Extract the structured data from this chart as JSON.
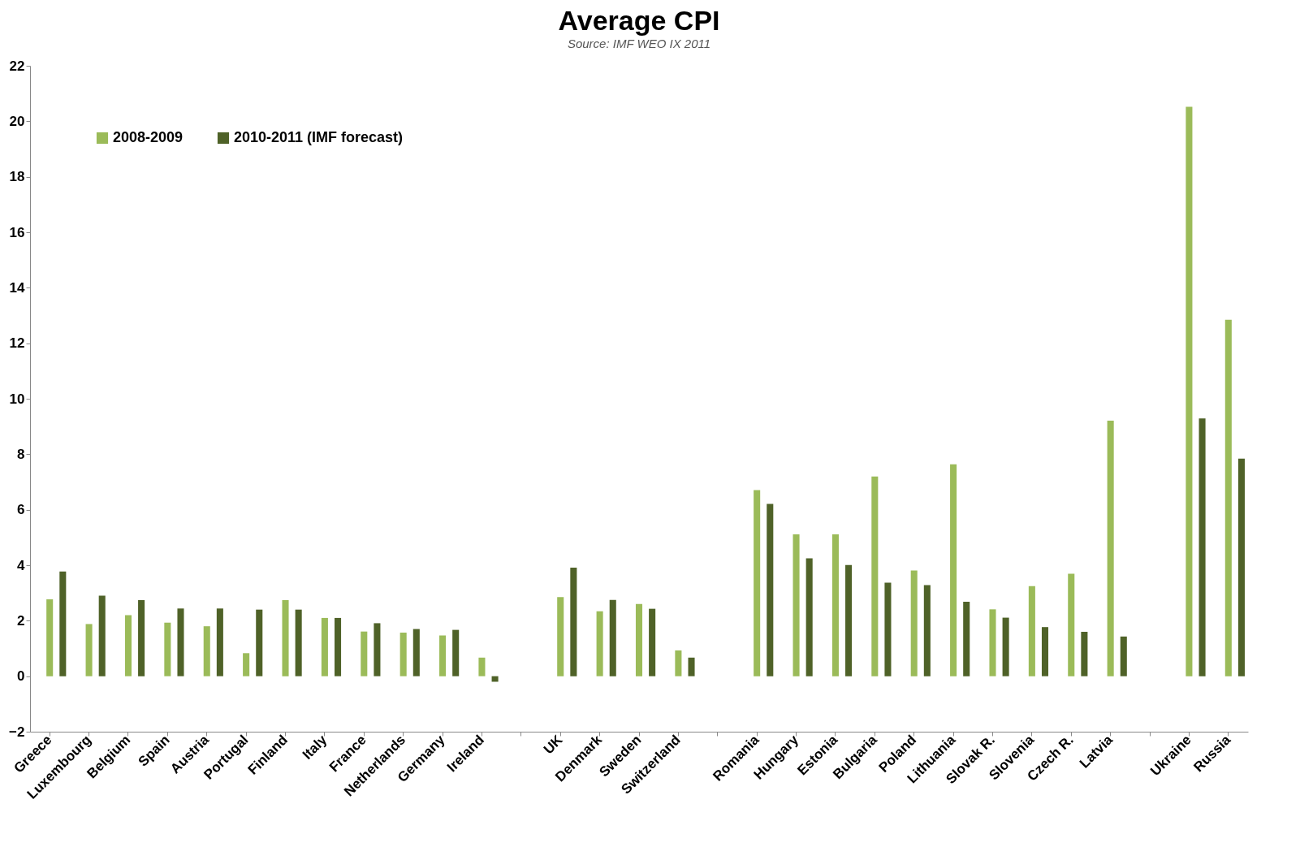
{
  "chart_data": {
    "type": "bar",
    "title": "Average CPI",
    "categories": [
      "Greece",
      "Luxembourg",
      "Belgium",
      "Spain",
      "Austria",
      "Portugal",
      "Finland",
      "Italy",
      "France",
      "Netherlands",
      "Germany",
      "Ireland",
      null,
      "UK",
      "Denmark",
      "Sweden",
      "Switzerland",
      null,
      "Romania",
      "Hungary",
      "Estonia",
      "Bulgaria",
      "Poland",
      "Lithuania",
      "Slovak R.",
      "Slovenia",
      "Czech R.",
      "Latvia",
      null,
      "Ukraine",
      "Russia"
    ],
    "series": [
      {
        "name": "2008-2009",
        "color": "#9bbb59",
        "values": [
          2.77,
          1.88,
          2.2,
          1.93,
          1.8,
          0.83,
          2.74,
          2.1,
          1.61,
          1.57,
          1.47,
          0.67,
          null,
          2.85,
          2.34,
          2.6,
          0.93,
          null,
          6.71,
          5.11,
          5.11,
          7.2,
          3.81,
          7.64,
          2.41,
          3.25,
          3.69,
          9.21,
          null,
          20.52,
          12.85
        ]
      },
      {
        "name": "2010-2011 (IMF forecast)",
        "color": "#4f6228",
        "values": [
          3.77,
          2.9,
          2.74,
          2.44,
          2.44,
          2.4,
          2.4,
          2.1,
          1.91,
          1.7,
          1.67,
          -0.2,
          null,
          3.91,
          2.75,
          2.43,
          0.67,
          null,
          6.21,
          4.25,
          4.01,
          3.37,
          3.28,
          2.68,
          2.11,
          1.77,
          1.6,
          1.43,
          null,
          9.29,
          7.84
        ]
      }
    ],
    "ylim": [
      -2,
      22
    ],
    "yticks": [
      -2,
      0,
      2,
      4,
      6,
      8,
      10,
      12,
      14,
      16,
      18,
      20,
      22
    ],
    "grid": false,
    "legend": "top left",
    "annotations": [
      "Source: IMF WEO IX 2011"
    ]
  }
}
